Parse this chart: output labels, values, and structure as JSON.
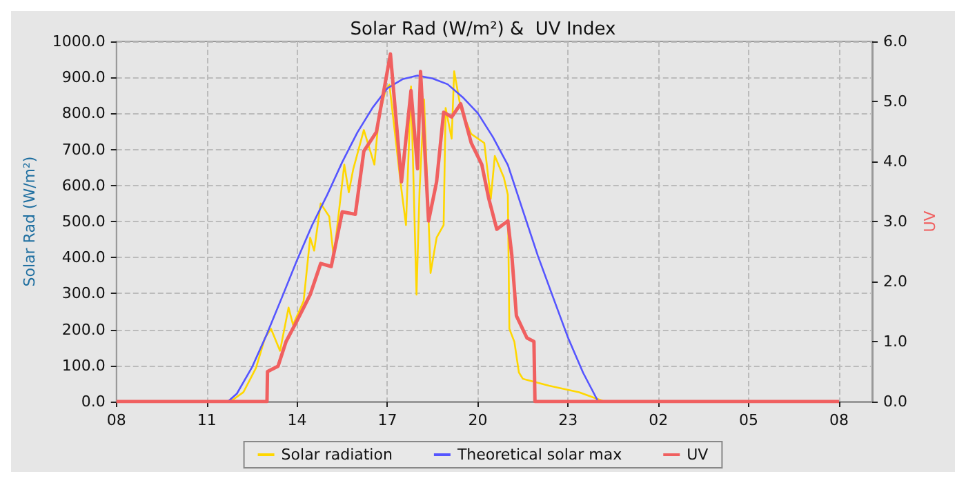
{
  "chart_data": {
    "type": "line",
    "title": "Solar Rad (W/m²) &  UV Index",
    "ylabel": "Solar Rad (W/m²)",
    "y2label": "UV",
    "xlim": [
      "--06-01T08:00",
      "--06-02T09:06"
    ],
    "xticks": [
      {
        "value": "--06-01T08:00",
        "label": "08"
      },
      {
        "value": "--06-01T11:00",
        "label": "11"
      },
      {
        "value": "--06-01T14:00",
        "label": "14"
      },
      {
        "value": "--06-01T17:00",
        "label": "17"
      },
      {
        "value": "--06-01T20:00",
        "label": "20"
      },
      {
        "value": "--06-01T23:00",
        "label": "23"
      },
      {
        "value": "--06-02T02:00",
        "label": "02"
      },
      {
        "value": "--06-02T05:00",
        "label": "05"
      },
      {
        "value": "--06-02T08:00",
        "label": "08"
      }
    ],
    "ylim": [
      0,
      1000
    ],
    "yticks": [
      {
        "value": 0,
        "label": "0.0"
      },
      {
        "value": 100,
        "label": "100.0"
      },
      {
        "value": 200,
        "label": "200.0"
      },
      {
        "value": 300,
        "label": "300.0"
      },
      {
        "value": 400,
        "label": "400.0"
      },
      {
        "value": 500,
        "label": "500.0"
      },
      {
        "value": 600,
        "label": "600.0"
      },
      {
        "value": 700,
        "label": "700.0"
      },
      {
        "value": 800,
        "label": "800.0"
      },
      {
        "value": 900,
        "label": "900.0"
      },
      {
        "value": 1000,
        "label": "1000.0"
      }
    ],
    "y2lim": [
      0,
      6
    ],
    "y2ticks": [
      {
        "value": 0,
        "label": "0.0"
      },
      {
        "value": 1,
        "label": "1.0"
      },
      {
        "value": 2,
        "label": "2.0"
      },
      {
        "value": 3,
        "label": "3.0"
      },
      {
        "value": 4,
        "label": "4.0"
      },
      {
        "value": 5,
        "label": "5.0"
      },
      {
        "value": 6,
        "label": "6.0"
      }
    ],
    "grid": true,
    "legend": "bottom",
    "marker": "none",
    "series": [
      {
        "name": "Solar radiation",
        "color": "#ffd700",
        "x": [
          "--06-01T08:00",
          "--06-01T11:47",
          "--06-01T12:13",
          "--06-01T12:38",
          "--06-01T12:56",
          "--06-01T13:08",
          "--06-01T13:26",
          "--06-01T13:43",
          "--06-01T13:52",
          "--06-01T14:13",
          "--06-01T14:26",
          "--06-01T14:34",
          "--06-01T14:47",
          "--06-01T15:04",
          "--06-01T15:13",
          "--06-01T15:34",
          "--06-01T15:43",
          "--06-01T15:52",
          "--06-01T16:13",
          "--06-01T16:34",
          "--06-01T16:43",
          "--06-01T16:56",
          "--06-01T17:04",
          "--06-01T17:26",
          "--06-01T17:37",
          "--06-01T17:47",
          "--06-01T17:58",
          "--06-01T18:04",
          "--06-01T18:13",
          "--06-01T18:26",
          "--06-01T18:38",
          "--06-01T18:52",
          "--06-01T18:56",
          "--06-01T19:08",
          "--06-01T19:13",
          "--06-01T19:26",
          "--06-01T19:47",
          "--06-01T20:13",
          "--06-01T20:26",
          "--06-01T20:34",
          "--06-01T20:52",
          "--06-01T21:00",
          "--06-01T21:03",
          "--06-01T21:13",
          "--06-01T21:22",
          "--06-01T21:30",
          "--06-01T22:22",
          "--06-01T23:22",
          "--06-02T00:13"
        ],
        "values": [
          0,
          0,
          26,
          93,
          177,
          202,
          141,
          261,
          213,
          279,
          455,
          419,
          550,
          514,
          400,
          658,
          581,
          646,
          754,
          658,
          791,
          863,
          880,
          610,
          490,
          875,
          297,
          586,
          839,
          357,
          455,
          490,
          815,
          730,
          917,
          815,
          743,
          718,
          563,
          682,
          622,
          574,
          202,
          166,
          81,
          63,
          44,
          26,
          0
        ]
      },
      {
        "name": "Theoretical solar max",
        "color": "#5555ff",
        "x": [
          "--06-01T08:00",
          "--06-01T11:42",
          "--06-01T12:00",
          "--06-01T12:30",
          "--06-01T13:00",
          "--06-01T13:30",
          "--06-01T14:00",
          "--06-01T14:30",
          "--06-01T15:00",
          "--06-01T15:30",
          "--06-01T16:00",
          "--06-01T16:30",
          "--06-01T17:00",
          "--06-01T17:30",
          "--06-01T18:00",
          "--06-01T18:30",
          "--06-01T19:00",
          "--06-01T19:30",
          "--06-01T20:00",
          "--06-01T20:30",
          "--06-01T21:00",
          "--06-01T21:30",
          "--06-01T22:00",
          "--06-01T22:30",
          "--06-01T23:00",
          "--06-01T23:30",
          "--06-02T00:00"
        ],
        "values": [
          0,
          0,
          22,
          95,
          188,
          290,
          393,
          490,
          574,
          665,
          747,
          815,
          870,
          895,
          905,
          897,
          881,
          845,
          801,
          735,
          657,
          530,
          404,
          290,
          177,
          80,
          0
        ]
      },
      {
        "name": "UV",
        "color": "#f06060",
        "axis": "y2",
        "x": [
          "--06-01T08:00",
          "--06-01T13:00",
          "--06-01T13:01",
          "--06-01T13:22",
          "--06-01T13:38",
          "--06-01T14:00",
          "--06-01T14:26",
          "--06-01T14:47",
          "--06-01T15:08",
          "--06-01T15:30",
          "--06-01T15:56",
          "--06-01T16:13",
          "--06-01T16:38",
          "--06-01T17:06",
          "--06-01T17:28",
          "--06-01T17:47",
          "--06-01T18:00",
          "--06-01T18:06",
          "--06-01T18:22",
          "--06-01T18:38",
          "--06-01T18:52",
          "--06-01T19:08",
          "--06-01T19:26",
          "--06-01T19:47",
          "--06-01T20:08",
          "--06-01T20:22",
          "--06-01T20:38",
          "--06-01T21:00",
          "--06-01T21:08",
          "--06-01T21:17",
          "--06-01T21:38",
          "--06-01T21:52",
          "--06-01T21:54",
          "--06-02T08:00"
        ],
        "values": [
          0,
          0,
          0.5,
          0.59,
          1.0,
          1.35,
          1.78,
          2.3,
          2.25,
          3.16,
          3.12,
          4.17,
          4.49,
          5.79,
          3.66,
          5.18,
          3.88,
          5.5,
          3.01,
          3.66,
          4.82,
          4.74,
          4.96,
          4.31,
          3.95,
          3.38,
          2.87,
          3.01,
          2.43,
          1.43,
          1.06,
          1.0,
          0,
          0
        ]
      }
    ]
  }
}
